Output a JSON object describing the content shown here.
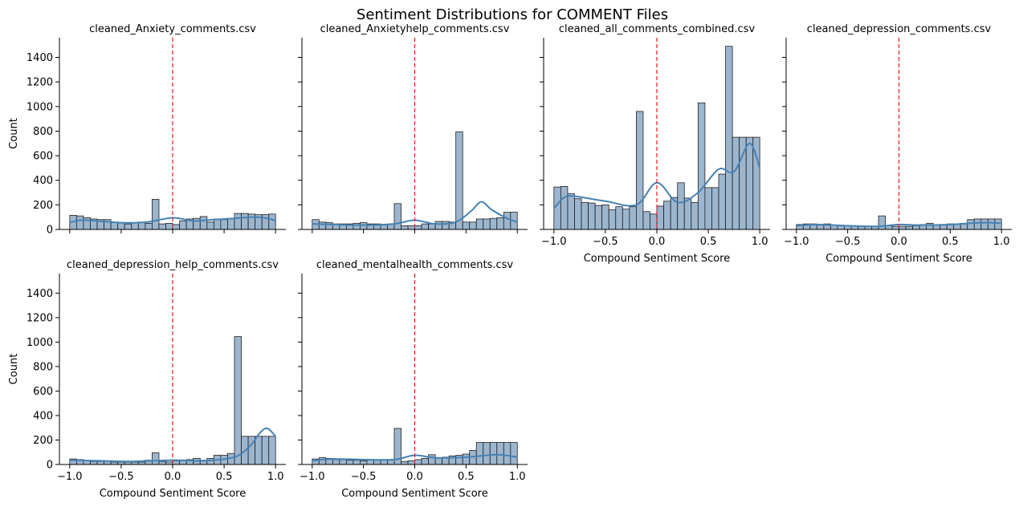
{
  "title": "Sentiment Distributions for COMMENT Files",
  "colors": {
    "bar_fill": "#9db6cf",
    "bar_edge": "#1f1f1f",
    "kde": "#4682b4",
    "zero_line": "#e41a1c"
  },
  "chart_data": {
    "type": "bar",
    "layout": "facet-grid",
    "shared_y": true,
    "xlim": [
      -1.1,
      1.1
    ],
    "ylim": [
      0,
      1560
    ],
    "x_ticks": [
      -1.0,
      -0.5,
      0.0,
      0.5,
      1.0
    ],
    "x_tick_labels": [
      "−1.0",
      "−0.5",
      "0.0",
      "0.5",
      "1.0"
    ],
    "y_ticks": [
      0,
      200,
      400,
      600,
      800,
      1000,
      1200,
      1400
    ],
    "y_tick_labels": [
      "0",
      "200",
      "400",
      "600",
      "800",
      "1000",
      "1200",
      "1400"
    ],
    "xlabel": "Compound Sentiment Score",
    "ylabel": "Count",
    "bin_start": -1.0,
    "bin_width": 0.0667,
    "reference_line_x": 0.0,
    "panels": [
      {
        "title": "cleaned_Anxiety_comments.csv",
        "show_xlabel": false,
        "show_ylabel": true,
        "show_x_tick_labels": false,
        "show_y_tick_labels": true,
        "counts": [
          115,
          110,
          95,
          85,
          80,
          80,
          55,
          55,
          45,
          55,
          60,
          50,
          245,
          45,
          50,
          40,
          70,
          85,
          90,
          105,
          60,
          85,
          80,
          90,
          130,
          130,
          125,
          120,
          120,
          125
        ],
        "kde": [
          [
            -1.0,
            55
          ],
          [
            -0.9,
            75
          ],
          [
            -0.75,
            70
          ],
          [
            -0.5,
            55
          ],
          [
            -0.25,
            60
          ],
          [
            0.0,
            95
          ],
          [
            0.2,
            70
          ],
          [
            0.4,
            80
          ],
          [
            0.6,
            90
          ],
          [
            0.8,
            100
          ],
          [
            0.95,
            85
          ],
          [
            1.0,
            65
          ]
        ]
      },
      {
        "title": "cleaned_Anxietyhelp_comments.csv",
        "show_xlabel": false,
        "show_ylabel": false,
        "show_x_tick_labels": false,
        "show_y_tick_labels": false,
        "counts": [
          80,
          60,
          55,
          45,
          45,
          45,
          50,
          55,
          45,
          45,
          40,
          45,
          210,
          30,
          30,
          30,
          45,
          45,
          65,
          65,
          60,
          795,
          60,
          60,
          85,
          85,
          90,
          95,
          140,
          140
        ],
        "kde": [
          [
            -1.0,
            45
          ],
          [
            -0.8,
            40
          ],
          [
            -0.5,
            35
          ],
          [
            -0.2,
            45
          ],
          [
            0.0,
            75
          ],
          [
            0.2,
            45
          ],
          [
            0.4,
            60
          ],
          [
            0.55,
            150
          ],
          [
            0.65,
            225
          ],
          [
            0.75,
            160
          ],
          [
            0.9,
            90
          ],
          [
            1.0,
            60
          ]
        ]
      },
      {
        "title": "cleaned_all_comments_combined.csv",
        "show_xlabel": true,
        "show_ylabel": false,
        "show_x_tick_labels": true,
        "show_y_tick_labels": false,
        "counts": [
          345,
          350,
          290,
          250,
          220,
          215,
          195,
          200,
          160,
          185,
          165,
          185,
          960,
          145,
          125,
          190,
          230,
          260,
          380,
          255,
          220,
          1030,
          340,
          340,
          450,
          1490,
          750,
          750,
          750,
          750
        ],
        "kde": [
          [
            -1.0,
            170
          ],
          [
            -0.9,
            260
          ],
          [
            -0.8,
            270
          ],
          [
            -0.5,
            230
          ],
          [
            -0.2,
            200
          ],
          [
            0.0,
            380
          ],
          [
            0.2,
            220
          ],
          [
            0.4,
            300
          ],
          [
            0.6,
            490
          ],
          [
            0.75,
            470
          ],
          [
            0.9,
            700
          ],
          [
            1.0,
            500
          ]
        ]
      },
      {
        "title": "cleaned_depression_comments.csv",
        "show_xlabel": true,
        "show_ylabel": false,
        "show_x_tick_labels": true,
        "show_y_tick_labels": false,
        "counts": [
          40,
          45,
          45,
          35,
          45,
          35,
          30,
          30,
          30,
          25,
          25,
          25,
          110,
          30,
          25,
          25,
          25,
          30,
          40,
          50,
          35,
          40,
          45,
          45,
          50,
          80,
          85,
          85,
          85,
          85
        ],
        "kde": [
          [
            -1.0,
            30
          ],
          [
            -0.8,
            40
          ],
          [
            -0.5,
            30
          ],
          [
            -0.2,
            25
          ],
          [
            0.0,
            40
          ],
          [
            0.2,
            35
          ],
          [
            0.5,
            40
          ],
          [
            0.8,
            55
          ],
          [
            1.0,
            50
          ]
        ]
      },
      {
        "title": "cleaned_depression_help_comments.csv",
        "show_xlabel": true,
        "show_ylabel": true,
        "show_x_tick_labels": true,
        "show_y_tick_labels": true,
        "counts": [
          45,
          40,
          30,
          25,
          25,
          25,
          20,
          20,
          20,
          20,
          20,
          35,
          95,
          25,
          20,
          30,
          35,
          40,
          50,
          35,
          50,
          75,
          75,
          90,
          1045,
          230,
          230,
          230,
          230,
          230
        ],
        "kde": [
          [
            -1.0,
            35
          ],
          [
            -0.7,
            30
          ],
          [
            -0.4,
            25
          ],
          [
            0.0,
            35
          ],
          [
            0.3,
            30
          ],
          [
            0.6,
            60
          ],
          [
            0.75,
            150
          ],
          [
            0.85,
            260
          ],
          [
            0.92,
            295
          ],
          [
            1.0,
            230
          ]
        ]
      },
      {
        "title": "cleaned_mentalhealth_comments.csv",
        "show_xlabel": true,
        "show_ylabel": false,
        "show_x_tick_labels": true,
        "show_y_tick_labels": false,
        "counts": [
          45,
          55,
          50,
          40,
          40,
          35,
          35,
          30,
          40,
          35,
          35,
          40,
          295,
          25,
          30,
          40,
          50,
          80,
          55,
          60,
          70,
          75,
          85,
          115,
          180,
          180,
          180,
          180,
          180,
          180
        ],
        "kde": [
          [
            -1.0,
            30
          ],
          [
            -0.8,
            45
          ],
          [
            -0.5,
            40
          ],
          [
            -0.2,
            40
          ],
          [
            0.0,
            75
          ],
          [
            0.2,
            55
          ],
          [
            0.5,
            60
          ],
          [
            0.8,
            80
          ],
          [
            1.0,
            60
          ]
        ]
      }
    ]
  }
}
